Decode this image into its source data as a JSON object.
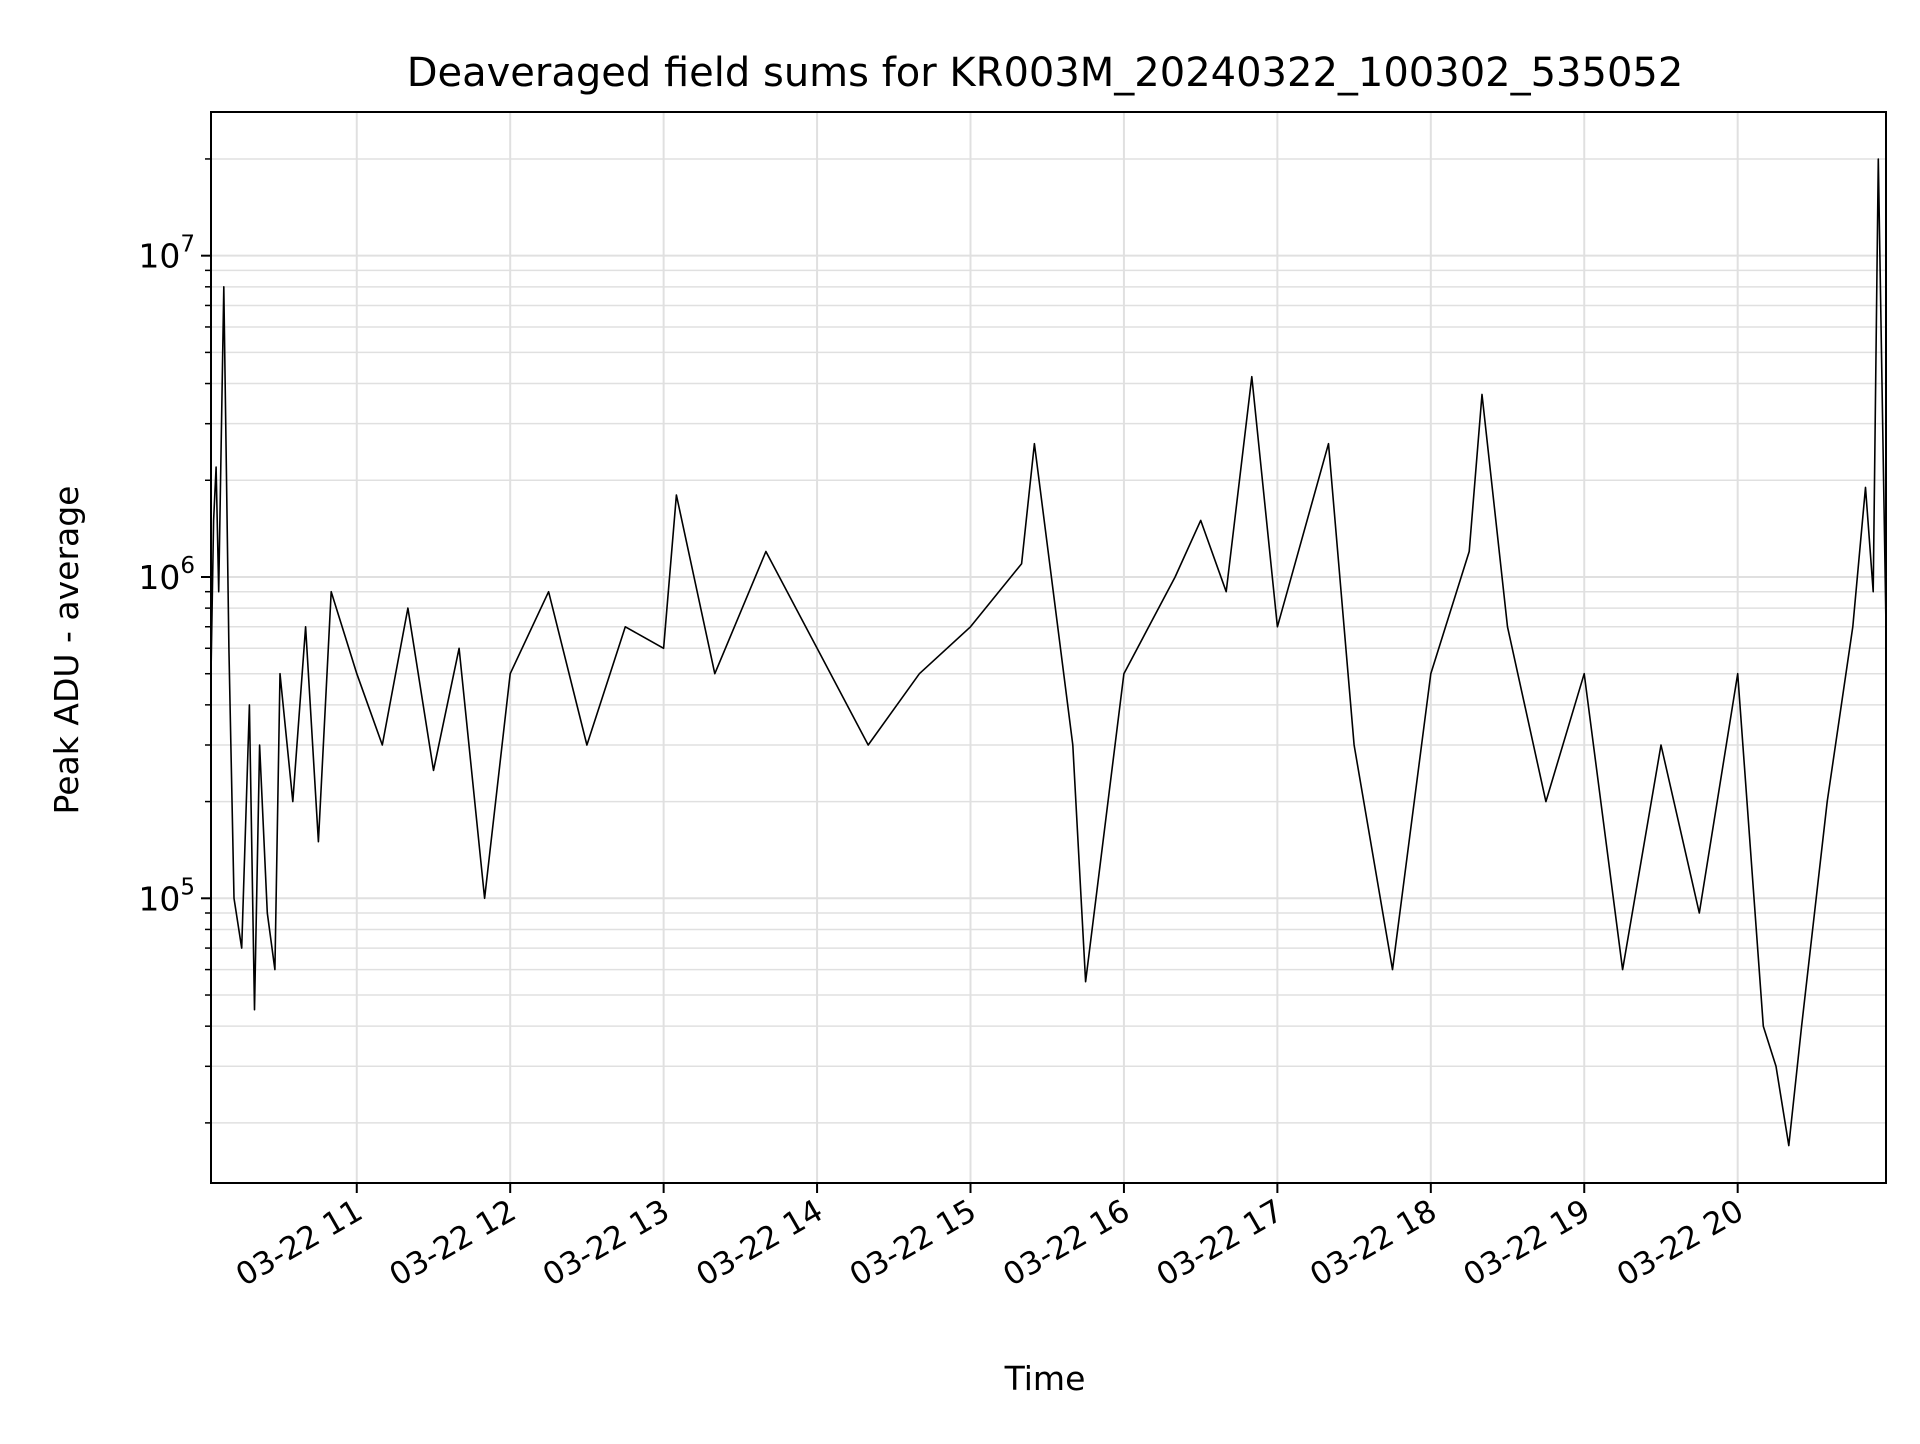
{
  "chart_data": {
    "type": "line",
    "title": "Deaveraged field sums for KR003M_20240322_100302_535052",
    "xlabel": "Time",
    "ylabel": "Peak ADU - average",
    "x_scale": "time",
    "y_scale": "log",
    "x_range": [
      "2024-03-22 10:03",
      "2024-03-22 20:58"
    ],
    "ylim": [
      13000,
      28000000
    ],
    "grid": true,
    "line_color": "#000000",
    "grid_color": "#e0e0e0",
    "x_ticks": [
      {
        "t": "2024-03-22 11:00",
        "label": "03-22 11"
      },
      {
        "t": "2024-03-22 12:00",
        "label": "03-22 12"
      },
      {
        "t": "2024-03-22 13:00",
        "label": "03-22 13"
      },
      {
        "t": "2024-03-22 14:00",
        "label": "03-22 14"
      },
      {
        "t": "2024-03-22 15:00",
        "label": "03-22 15"
      },
      {
        "t": "2024-03-22 16:00",
        "label": "03-22 16"
      },
      {
        "t": "2024-03-22 17:00",
        "label": "03-22 17"
      },
      {
        "t": "2024-03-22 18:00",
        "label": "03-22 18"
      },
      {
        "t": "2024-03-22 19:00",
        "label": "03-22 19"
      },
      {
        "t": "2024-03-22 20:00",
        "label": "03-22 20"
      }
    ],
    "y_ticks": [
      {
        "value": 100000,
        "base": "10",
        "exp": "5"
      },
      {
        "value": 1000000,
        "base": "10",
        "exp": "6"
      },
      {
        "value": 10000000,
        "base": "10",
        "exp": "7"
      }
    ],
    "series": [
      {
        "x": [
          "2024-03-22 10:03",
          "2024-03-22 10:04",
          "2024-03-22 10:05",
          "2024-03-22 10:06",
          "2024-03-22 10:08",
          "2024-03-22 10:10",
          "2024-03-22 10:12",
          "2024-03-22 10:15",
          "2024-03-22 10:18",
          "2024-03-22 10:20",
          "2024-03-22 10:22",
          "2024-03-22 10:25",
          "2024-03-22 10:28",
          "2024-03-22 10:30",
          "2024-03-22 10:35",
          "2024-03-22 10:40",
          "2024-03-22 10:45",
          "2024-03-22 10:50",
          "2024-03-22 11:00",
          "2024-03-22 11:10",
          "2024-03-22 11:20",
          "2024-03-22 11:30",
          "2024-03-22 11:40",
          "2024-03-22 11:50",
          "2024-03-22 12:00",
          "2024-03-22 12:15",
          "2024-03-22 12:30",
          "2024-03-22 12:45",
          "2024-03-22 13:00",
          "2024-03-22 13:05",
          "2024-03-22 13:20",
          "2024-03-22 13:40",
          "2024-03-22 14:00",
          "2024-03-22 14:20",
          "2024-03-22 14:40",
          "2024-03-22 15:00",
          "2024-03-22 15:20",
          "2024-03-22 15:25",
          "2024-03-22 15:40",
          "2024-03-22 15:45",
          "2024-03-22 16:00",
          "2024-03-22 16:20",
          "2024-03-22 16:30",
          "2024-03-22 16:40",
          "2024-03-22 16:50",
          "2024-03-22 17:00",
          "2024-03-22 17:20",
          "2024-03-22 17:30",
          "2024-03-22 17:45",
          "2024-03-22 18:00",
          "2024-03-22 18:15",
          "2024-03-22 18:20",
          "2024-03-22 18:30",
          "2024-03-22 18:45",
          "2024-03-22 19:00",
          "2024-03-22 19:15",
          "2024-03-22 19:30",
          "2024-03-22 19:45",
          "2024-03-22 20:00",
          "2024-03-22 20:10",
          "2024-03-22 20:15",
          "2024-03-22 20:20",
          "2024-03-22 20:25",
          "2024-03-22 20:35",
          "2024-03-22 20:45",
          "2024-03-22 20:50",
          "2024-03-22 20:53",
          "2024-03-22 20:55",
          "2024-03-22 20:58"
        ],
        "y": [
          500000,
          1500000,
          2200000,
          900000,
          8000000,
          600000,
          100000,
          70000,
          400000,
          45000,
          300000,
          90000,
          60000,
          500000,
          200000,
          700000,
          150000,
          900000,
          500000,
          300000,
          800000,
          250000,
          600000,
          100000,
          500000,
          900000,
          300000,
          700000,
          600000,
          1800000,
          500000,
          1200000,
          600000,
          300000,
          500000,
          700000,
          1100000,
          2600000,
          300000,
          55000,
          500000,
          1000000,
          1500000,
          900000,
          4200000,
          700000,
          2600000,
          300000,
          60000,
          500000,
          1200000,
          3700000,
          700000,
          200000,
          500000,
          60000,
          300000,
          90000,
          500000,
          40000,
          30000,
          17000,
          40000,
          200000,
          700000,
          1900000,
          900000,
          20000000,
          700000
        ]
      }
    ]
  }
}
